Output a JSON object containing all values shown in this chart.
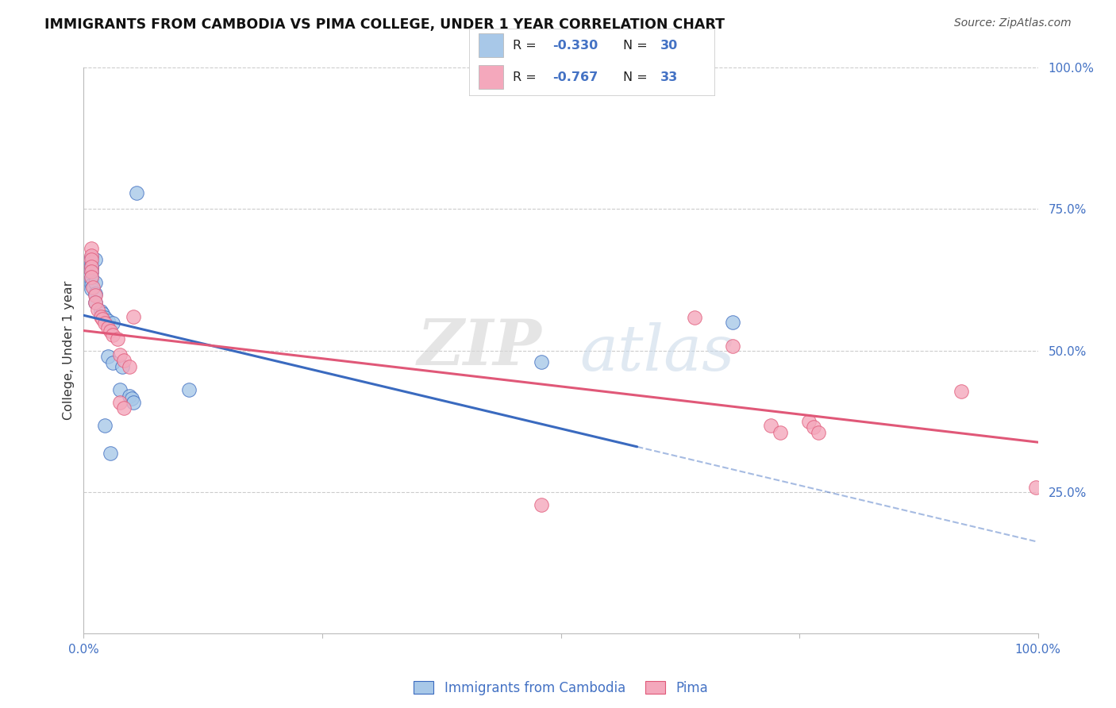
{
  "title": "IMMIGRANTS FROM CAMBODIA VS PIMA COLLEGE, UNDER 1 YEAR CORRELATION CHART",
  "source": "Source: ZipAtlas.com",
  "ylabel": "College, Under 1 year",
  "xlim": [
    0,
    1
  ],
  "ylim": [
    0,
    1
  ],
  "legend_labels": [
    "Immigrants from Cambodia",
    "Pima"
  ],
  "blue_color": "#a8c8e8",
  "pink_color": "#f4a8bc",
  "blue_line_color": "#3a6abf",
  "pink_line_color": "#e05878",
  "blue_scatter": [
    [
      0.008,
      0.665
    ],
    [
      0.008,
      0.655
    ],
    [
      0.008,
      0.65
    ],
    [
      0.008,
      0.645
    ],
    [
      0.008,
      0.638
    ],
    [
      0.008,
      0.63
    ],
    [
      0.008,
      0.622
    ],
    [
      0.008,
      0.616
    ],
    [
      0.008,
      0.608
    ],
    [
      0.012,
      0.66
    ],
    [
      0.012,
      0.62
    ],
    [
      0.012,
      0.6
    ],
    [
      0.012,
      0.585
    ],
    [
      0.018,
      0.57
    ],
    [
      0.02,
      0.565
    ],
    [
      0.022,
      0.558
    ],
    [
      0.025,
      0.553
    ],
    [
      0.03,
      0.548
    ],
    [
      0.025,
      0.49
    ],
    [
      0.03,
      0.478
    ],
    [
      0.04,
      0.472
    ],
    [
      0.055,
      0.778
    ],
    [
      0.038,
      0.43
    ],
    [
      0.048,
      0.42
    ],
    [
      0.05,
      0.415
    ],
    [
      0.052,
      0.408
    ],
    [
      0.022,
      0.368
    ],
    [
      0.028,
      0.318
    ],
    [
      0.11,
      0.43
    ],
    [
      0.48,
      0.48
    ],
    [
      0.68,
      0.55
    ]
  ],
  "pink_scatter": [
    [
      0.008,
      0.68
    ],
    [
      0.008,
      0.668
    ],
    [
      0.008,
      0.66
    ],
    [
      0.008,
      0.648
    ],
    [
      0.008,
      0.64
    ],
    [
      0.008,
      0.63
    ],
    [
      0.01,
      0.612
    ],
    [
      0.012,
      0.598
    ],
    [
      0.012,
      0.585
    ],
    [
      0.015,
      0.572
    ],
    [
      0.018,
      0.56
    ],
    [
      0.02,
      0.555
    ],
    [
      0.022,
      0.548
    ],
    [
      0.025,
      0.54
    ],
    [
      0.028,
      0.535
    ],
    [
      0.03,
      0.528
    ],
    [
      0.035,
      0.52
    ],
    [
      0.038,
      0.492
    ],
    [
      0.042,
      0.482
    ],
    [
      0.048,
      0.472
    ],
    [
      0.052,
      0.56
    ],
    [
      0.038,
      0.408
    ],
    [
      0.042,
      0.398
    ],
    [
      0.48,
      0.228
    ],
    [
      0.64,
      0.558
    ],
    [
      0.68,
      0.508
    ],
    [
      0.72,
      0.368
    ],
    [
      0.73,
      0.355
    ],
    [
      0.76,
      0.375
    ],
    [
      0.765,
      0.365
    ],
    [
      0.77,
      0.355
    ],
    [
      0.92,
      0.428
    ],
    [
      0.998,
      0.258
    ]
  ],
  "blue_line": {
    "x0": 0.0,
    "y0": 0.562,
    "x1": 0.58,
    "y1": 0.33
  },
  "blue_line_dashed": {
    "x0": 0.58,
    "y0": 0.33,
    "x1": 1.0,
    "y1": 0.162
  },
  "pink_line": {
    "x0": 0.0,
    "y0": 0.535,
    "x1": 1.0,
    "y1": 0.338
  },
  "watermark_zip": "ZIP",
  "watermark_atlas": "atlas",
  "background_color": "#ffffff",
  "grid_color": "#cccccc"
}
